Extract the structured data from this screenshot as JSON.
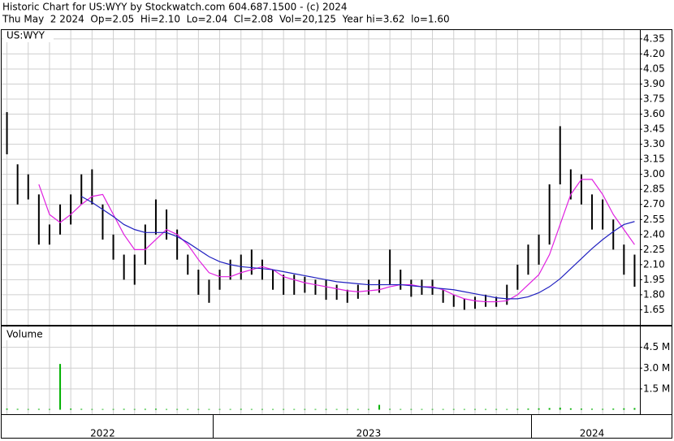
{
  "header": {
    "line1": "Historic Chart for US:WYY by Stockwatch.com 604.687.1500 - (c) 2024",
    "line2": "Thu May  2 2024  Op=2.05  Hi=2.10  Lo=2.04  Cl=2.08  Vol=20,125  Year hi=3.62  lo=1.60"
  },
  "chart_data": [
    {
      "type": "hilo",
      "title": "US:WYY",
      "color": "#000000",
      "grid": true,
      "ylim": [
        1.5,
        4.43
      ],
      "yticks": [
        4.35,
        {
          "value": 4.2,
          "label": "4.20"
        },
        4.05,
        {
          "value": 3.9,
          "label": "3.90"
        },
        3.75,
        {
          "value": 3.6,
          "label": "3.60"
        },
        3.45,
        {
          "value": 3.3,
          "label": "3.30"
        },
        3.15,
        {
          "value": 3.0,
          "label": "3.00"
        },
        2.85,
        {
          "value": 2.7,
          "label": "2.70"
        },
        2.55,
        {
          "value": 2.4,
          "label": "2.40"
        },
        2.25,
        {
          "value": 2.1,
          "label": "2.10"
        },
        1.95,
        {
          "value": 1.8,
          "label": "1.80"
        },
        1.65
      ],
      "high": [
        3.62,
        3.1,
        3.0,
        2.8,
        2.5,
        2.7,
        2.8,
        3.0,
        3.05,
        2.7,
        2.4,
        2.2,
        2.2,
        2.5,
        2.75,
        2.65,
        2.45,
        2.2,
        2.05,
        1.95,
        2.05,
        2.15,
        2.2,
        2.25,
        2.15,
        2.05,
        2.0,
        2.0,
        1.98,
        1.95,
        1.95,
        1.9,
        1.85,
        1.9,
        1.95,
        1.95,
        2.25,
        2.05,
        1.95,
        1.95,
        1.95,
        1.85,
        1.8,
        1.76,
        1.78,
        1.8,
        1.78,
        1.9,
        2.1,
        2.3,
        2.4,
        2.9,
        3.48,
        3.05,
        3.0,
        2.8,
        2.75,
        2.55,
        2.3,
        2.2
      ],
      "low": [
        3.2,
        2.7,
        2.75,
        2.3,
        2.3,
        2.4,
        2.5,
        2.7,
        2.7,
        2.35,
        2.15,
        1.95,
        1.9,
        2.1,
        2.4,
        2.35,
        2.15,
        2.0,
        1.8,
        1.72,
        1.85,
        1.95,
        1.95,
        2.0,
        1.95,
        1.85,
        1.8,
        1.8,
        1.82,
        1.8,
        1.75,
        1.75,
        1.72,
        1.76,
        1.8,
        1.82,
        1.9,
        1.85,
        1.78,
        1.8,
        1.8,
        1.72,
        1.68,
        1.65,
        1.66,
        1.68,
        1.68,
        1.7,
        1.85,
        2.0,
        2.1,
        2.3,
        2.9,
        2.75,
        2.7,
        2.45,
        2.45,
        2.25,
        2.0,
        1.88
      ],
      "series": [
        {
          "color": "#e020e0",
          "values": [
            null,
            null,
            null,
            2.9,
            2.6,
            2.52,
            2.6,
            2.7,
            2.78,
            2.8,
            2.6,
            2.4,
            2.25,
            2.25,
            2.35,
            2.45,
            2.4,
            2.3,
            2.15,
            2.02,
            1.98,
            1.98,
            2.02,
            2.05,
            2.08,
            2.05,
            1.98,
            1.95,
            1.92,
            1.9,
            1.88,
            1.86,
            1.84,
            1.83,
            1.84,
            1.85,
            1.88,
            1.9,
            1.9,
            1.88,
            1.88,
            1.85,
            1.8,
            1.76,
            1.74,
            1.73,
            1.73,
            1.74,
            1.8,
            1.9,
            2.0,
            2.2,
            2.5,
            2.8,
            2.95,
            2.95,
            2.8,
            2.6,
            2.45,
            2.3
          ]
        },
        {
          "color": "#2020c0",
          "values": [
            null,
            null,
            null,
            null,
            null,
            null,
            null,
            2.78,
            2.72,
            2.65,
            2.58,
            2.5,
            2.45,
            2.42,
            2.42,
            2.42,
            2.38,
            2.32,
            2.25,
            2.18,
            2.13,
            2.1,
            2.08,
            2.07,
            2.06,
            2.05,
            2.03,
            2.01,
            1.99,
            1.97,
            1.95,
            1.93,
            1.92,
            1.91,
            1.9,
            1.9,
            1.9,
            1.9,
            1.89,
            1.88,
            1.87,
            1.86,
            1.85,
            1.83,
            1.81,
            1.79,
            1.77,
            1.76,
            1.76,
            1.78,
            1.82,
            1.88,
            1.96,
            2.06,
            2.16,
            2.26,
            2.35,
            2.43,
            2.5,
            2.53
          ]
        }
      ]
    },
    {
      "type": "bar",
      "title": "Volume",
      "color": "#00b000",
      "grid": true,
      "ylim": [
        0,
        6.0
      ],
      "yticks": [
        {
          "value": 4.5,
          "label": "4.5 M"
        },
        {
          "value": 3.0,
          "label": "3.0 M"
        },
        {
          "value": 1.5,
          "label": "1.5 M"
        }
      ],
      "categories": [
        null,
        null,
        null,
        null,
        null,
        null,
        null,
        null,
        null,
        "2022",
        null,
        null,
        null,
        null,
        null,
        null,
        null,
        null,
        null,
        null,
        null,
        null,
        null,
        null,
        null,
        null,
        null,
        null,
        null,
        null,
        null,
        null,
        null,
        null,
        "2023",
        null,
        null,
        null,
        null,
        null,
        null,
        null,
        null,
        null,
        null,
        null,
        null,
        null,
        null,
        null,
        null,
        null,
        null,
        null,
        null,
        "2024",
        null,
        null,
        null,
        null
      ],
      "values": [
        0.08,
        0.06,
        0.05,
        0.06,
        0.05,
        3.3,
        0.08,
        0.06,
        0.05,
        0.05,
        0.05,
        0.06,
        0.05,
        0.06,
        0.07,
        0.05,
        0.05,
        0.05,
        0.05,
        0.05,
        0.05,
        0.05,
        0.06,
        0.05,
        0.05,
        0.05,
        0.05,
        0.05,
        0.05,
        0.05,
        0.05,
        0.05,
        0.05,
        0.05,
        0.05,
        0.35,
        0.06,
        0.05,
        0.05,
        0.05,
        0.05,
        0.05,
        0.05,
        0.05,
        0.05,
        0.05,
        0.05,
        0.05,
        0.06,
        0.08,
        0.1,
        0.12,
        0.15,
        0.1,
        0.08,
        0.07,
        0.06,
        0.08,
        0.1,
        0.12
      ]
    }
  ]
}
